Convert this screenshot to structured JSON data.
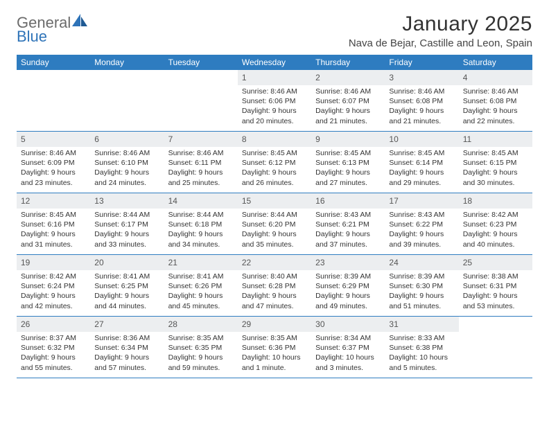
{
  "brand": {
    "part1": "General",
    "part2": "Blue"
  },
  "title": "January 2025",
  "location": "Nava de Bejar, Castille and Leon, Spain",
  "colors": {
    "header_bg": "#2e7cc0",
    "daynum_bg": "#eceef0",
    "divider": "#2e7cc0",
    "text": "#333333"
  },
  "weekdays": [
    "Sunday",
    "Monday",
    "Tuesday",
    "Wednesday",
    "Thursday",
    "Friday",
    "Saturday"
  ],
  "weeks": [
    [
      {
        "n": "",
        "e": true
      },
      {
        "n": "",
        "e": true
      },
      {
        "n": "",
        "e": true
      },
      {
        "n": "1",
        "sr": "8:46 AM",
        "ss": "6:06 PM",
        "dl": "9 hours and 20 minutes."
      },
      {
        "n": "2",
        "sr": "8:46 AM",
        "ss": "6:07 PM",
        "dl": "9 hours and 21 minutes."
      },
      {
        "n": "3",
        "sr": "8:46 AM",
        "ss": "6:08 PM",
        "dl": "9 hours and 21 minutes."
      },
      {
        "n": "4",
        "sr": "8:46 AM",
        "ss": "6:08 PM",
        "dl": "9 hours and 22 minutes."
      }
    ],
    [
      {
        "n": "5",
        "sr": "8:46 AM",
        "ss": "6:09 PM",
        "dl": "9 hours and 23 minutes."
      },
      {
        "n": "6",
        "sr": "8:46 AM",
        "ss": "6:10 PM",
        "dl": "9 hours and 24 minutes."
      },
      {
        "n": "7",
        "sr": "8:46 AM",
        "ss": "6:11 PM",
        "dl": "9 hours and 25 minutes."
      },
      {
        "n": "8",
        "sr": "8:45 AM",
        "ss": "6:12 PM",
        "dl": "9 hours and 26 minutes."
      },
      {
        "n": "9",
        "sr": "8:45 AM",
        "ss": "6:13 PM",
        "dl": "9 hours and 27 minutes."
      },
      {
        "n": "10",
        "sr": "8:45 AM",
        "ss": "6:14 PM",
        "dl": "9 hours and 29 minutes."
      },
      {
        "n": "11",
        "sr": "8:45 AM",
        "ss": "6:15 PM",
        "dl": "9 hours and 30 minutes."
      }
    ],
    [
      {
        "n": "12",
        "sr": "8:45 AM",
        "ss": "6:16 PM",
        "dl": "9 hours and 31 minutes."
      },
      {
        "n": "13",
        "sr": "8:44 AM",
        "ss": "6:17 PM",
        "dl": "9 hours and 33 minutes."
      },
      {
        "n": "14",
        "sr": "8:44 AM",
        "ss": "6:18 PM",
        "dl": "9 hours and 34 minutes."
      },
      {
        "n": "15",
        "sr": "8:44 AM",
        "ss": "6:20 PM",
        "dl": "9 hours and 35 minutes."
      },
      {
        "n": "16",
        "sr": "8:43 AM",
        "ss": "6:21 PM",
        "dl": "9 hours and 37 minutes."
      },
      {
        "n": "17",
        "sr": "8:43 AM",
        "ss": "6:22 PM",
        "dl": "9 hours and 39 minutes."
      },
      {
        "n": "18",
        "sr": "8:42 AM",
        "ss": "6:23 PM",
        "dl": "9 hours and 40 minutes."
      }
    ],
    [
      {
        "n": "19",
        "sr": "8:42 AM",
        "ss": "6:24 PM",
        "dl": "9 hours and 42 minutes."
      },
      {
        "n": "20",
        "sr": "8:41 AM",
        "ss": "6:25 PM",
        "dl": "9 hours and 44 minutes."
      },
      {
        "n": "21",
        "sr": "8:41 AM",
        "ss": "6:26 PM",
        "dl": "9 hours and 45 minutes."
      },
      {
        "n": "22",
        "sr": "8:40 AM",
        "ss": "6:28 PM",
        "dl": "9 hours and 47 minutes."
      },
      {
        "n": "23",
        "sr": "8:39 AM",
        "ss": "6:29 PM",
        "dl": "9 hours and 49 minutes."
      },
      {
        "n": "24",
        "sr": "8:39 AM",
        "ss": "6:30 PM",
        "dl": "9 hours and 51 minutes."
      },
      {
        "n": "25",
        "sr": "8:38 AM",
        "ss": "6:31 PM",
        "dl": "9 hours and 53 minutes."
      }
    ],
    [
      {
        "n": "26",
        "sr": "8:37 AM",
        "ss": "6:32 PM",
        "dl": "9 hours and 55 minutes."
      },
      {
        "n": "27",
        "sr": "8:36 AM",
        "ss": "6:34 PM",
        "dl": "9 hours and 57 minutes."
      },
      {
        "n": "28",
        "sr": "8:35 AM",
        "ss": "6:35 PM",
        "dl": "9 hours and 59 minutes."
      },
      {
        "n": "29",
        "sr": "8:35 AM",
        "ss": "6:36 PM",
        "dl": "10 hours and 1 minute."
      },
      {
        "n": "30",
        "sr": "8:34 AM",
        "ss": "6:37 PM",
        "dl": "10 hours and 3 minutes."
      },
      {
        "n": "31",
        "sr": "8:33 AM",
        "ss": "6:38 PM",
        "dl": "10 hours and 5 minutes."
      },
      {
        "n": "",
        "e": true
      }
    ]
  ],
  "labels": {
    "sunrise": "Sunrise:",
    "sunset": "Sunset:",
    "daylight": "Daylight:"
  }
}
